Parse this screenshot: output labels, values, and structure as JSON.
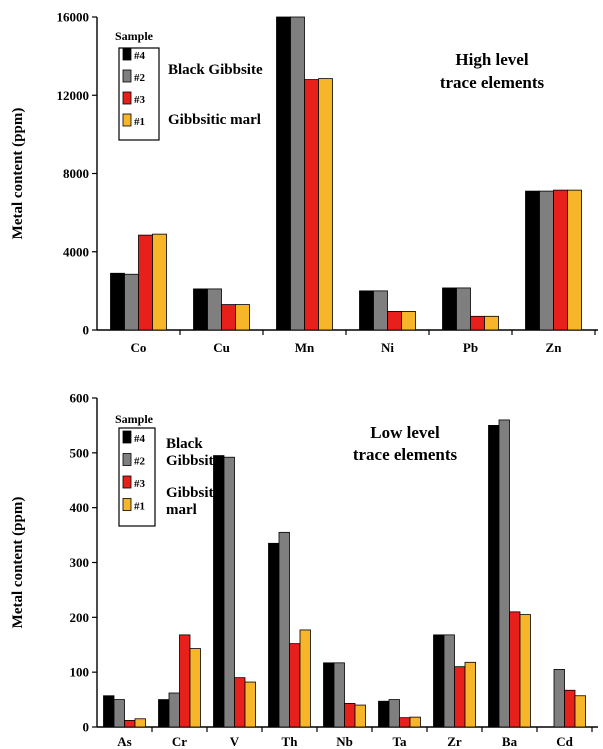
{
  "chart_data": [
    {
      "type": "bar",
      "annotation": [
        "High level",
        "trace elements"
      ],
      "ylabel": "Metal content (ppm)",
      "ylim": [
        0,
        16000
      ],
      "yticks": [
        0,
        4000,
        8000,
        12000,
        16000
      ],
      "categories": [
        "Co",
        "Cu",
        "Mn",
        "Ni",
        "Pb",
        "Zn"
      ],
      "legend": {
        "title": "Sample",
        "placement": "top-left",
        "group_labels": [
          {
            "text": [
              "Black Gibbsite"
            ],
            "series": [
              0,
              1
            ]
          },
          {
            "text": [
              "Gibbsitic marl"
            ],
            "series": [
              2,
              3
            ]
          }
        ]
      },
      "series": [
        {
          "name": "#4",
          "color": "#000000",
          "values": [
            2900,
            2100,
            16000,
            2000,
            2150,
            7100
          ]
        },
        {
          "name": "#2",
          "color": "#7f7f7f",
          "values": [
            2850,
            2100,
            16000,
            2000,
            2150,
            7100
          ]
        },
        {
          "name": "#3",
          "color": "#e8201c",
          "values": [
            4850,
            1300,
            12800,
            950,
            700,
            7150
          ]
        },
        {
          "name": "#1",
          "color": "#f7b52a",
          "values": [
            4900,
            1300,
            12850,
            950,
            700,
            7150
          ]
        }
      ]
    },
    {
      "type": "bar",
      "annotation": [
        "Low level",
        "trace elements"
      ],
      "ylabel": "Metal content (ppm)",
      "ylim": [
        0,
        600
      ],
      "yticks": [
        0,
        100,
        200,
        300,
        400,
        500,
        600
      ],
      "categories": [
        "As",
        "Cr",
        "V",
        "Th",
        "Nb",
        "Ta",
        "Zr",
        "Ba",
        "Cd"
      ],
      "legend": {
        "title": "Sample",
        "placement": "top-left",
        "group_labels": [
          {
            "text": [
              "Black",
              "Gibbsite"
            ],
            "series": [
              0,
              1
            ]
          },
          {
            "text": [
              "Gibbsitic",
              "marl"
            ],
            "series": [
              2,
              3
            ]
          }
        ]
      },
      "series": [
        {
          "name": "#4",
          "color": "#000000",
          "values": [
            57,
            50,
            495,
            335,
            117,
            47,
            168,
            550,
            0
          ]
        },
        {
          "name": "#2",
          "color": "#7f7f7f",
          "values": [
            50,
            62,
            492,
            355,
            117,
            50,
            168,
            560,
            105
          ]
        },
        {
          "name": "#3",
          "color": "#e8201c",
          "values": [
            12,
            168,
            90,
            152,
            43,
            17,
            110,
            210,
            67
          ]
        },
        {
          "name": "#1",
          "color": "#f7b52a",
          "values": [
            15,
            143,
            82,
            177,
            40,
            18,
            118,
            205,
            57
          ]
        }
      ]
    }
  ]
}
